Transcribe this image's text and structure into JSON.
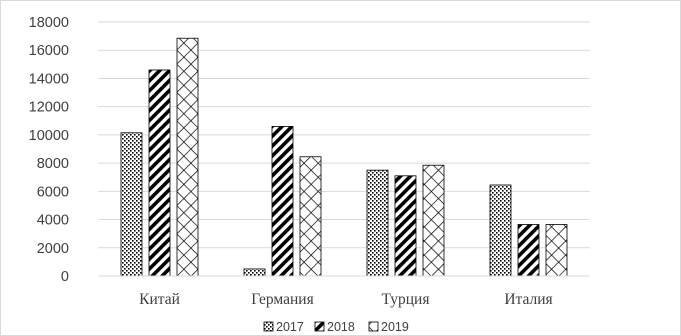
{
  "chart_data": {
    "type": "bar",
    "categories": [
      "Китай",
      "Германия",
      "Турция",
      "Италия"
    ],
    "series": [
      {
        "name": "2017",
        "values": [
          10150,
          500,
          7500,
          6450
        ],
        "pattern": "dots"
      },
      {
        "name": "2018",
        "values": [
          14600,
          10600,
          7100,
          3650
        ],
        "pattern": "diag"
      },
      {
        "name": "2019",
        "values": [
          16850,
          8450,
          7850,
          3650
        ],
        "pattern": "diamond"
      }
    ],
    "title": "",
    "xlabel": "",
    "ylabel": "",
    "ylim": [
      0,
      18000
    ],
    "yticks": [
      "0",
      "2000",
      "4000",
      "6000",
      "8000",
      "10000",
      "12000",
      "14000",
      "16000",
      "18000"
    ],
    "grid": true,
    "legend_position": "bottom",
    "colors": {
      "grid": "#d9d9d9",
      "bar_stroke": "#000000",
      "text": "#404040",
      "frame": "#d9d9d9"
    }
  }
}
